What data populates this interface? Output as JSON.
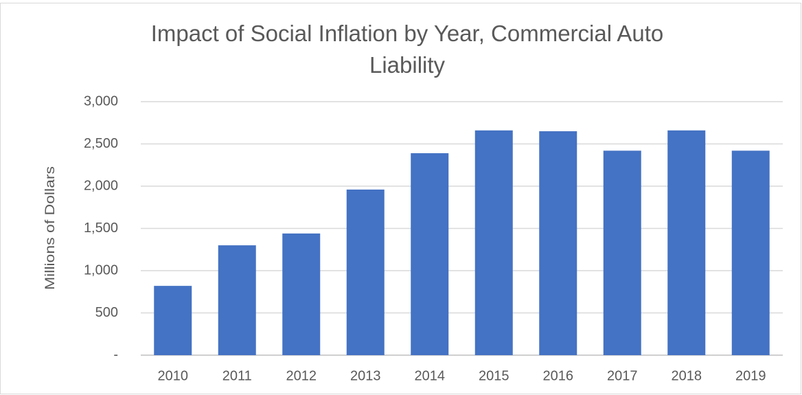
{
  "chart_data": {
    "type": "bar",
    "title": "Impact of Social Inflation by Year, Commercial Auto Liability",
    "y_label": "Millions of Dollars",
    "categories": [
      "2010",
      "2011",
      "2012",
      "2013",
      "2014",
      "2015",
      "2016",
      "2017",
      "2018",
      "2019"
    ],
    "values": [
      820,
      1300,
      1440,
      1960,
      2390,
      2660,
      2650,
      2420,
      2660,
      2420
    ],
    "color": "#4472c4",
    "ylim": [
      0,
      3000
    ],
    "yticks": [
      {
        "value": 0,
        "label": "-"
      },
      500,
      {
        "value": 1000,
        "label": "1,000"
      },
      {
        "value": 1500,
        "label": "1,500"
      },
      {
        "value": 2000,
        "label": "2,000"
      },
      {
        "value": 2500,
        "label": "2,500"
      },
      {
        "value": 3000,
        "label": "3,000"
      }
    ],
    "grid": true
  }
}
